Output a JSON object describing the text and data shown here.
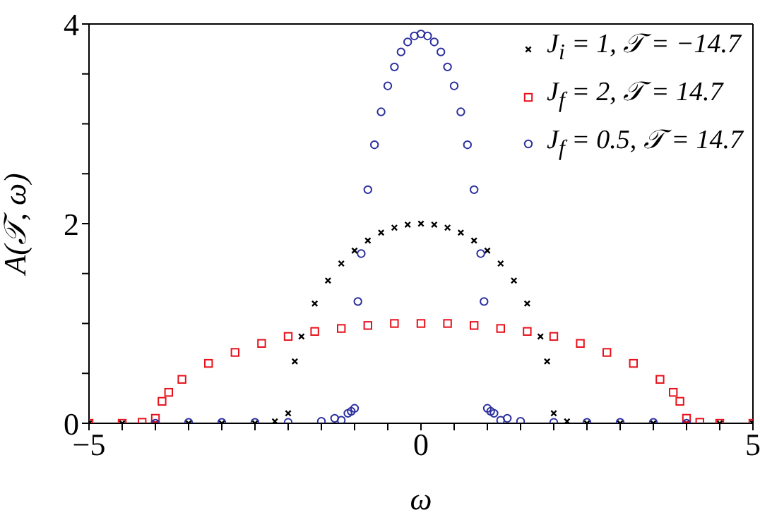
{
  "chart_data": {
    "type": "scatter",
    "xlabel": "ω",
    "ylabel": "A(𝒯, ω)",
    "xlim": [
      -5,
      5
    ],
    "ylim": [
      0,
      4
    ],
    "xticks": [
      -5,
      {
        "value": -4.5,
        "label": null
      },
      {
        "value": -4,
        "label": null
      },
      {
        "value": -3.5,
        "label": null
      },
      {
        "value": -3,
        "label": null
      },
      {
        "value": -2.5,
        "label": null
      },
      {
        "value": -2,
        "label": null
      },
      {
        "value": -1.5,
        "label": null
      },
      {
        "value": -1,
        "label": null
      },
      {
        "value": -0.5,
        "label": null
      },
      0,
      {
        "value": 0.5,
        "label": null
      },
      {
        "value": 1,
        "label": null
      },
      {
        "value": 1.5,
        "label": null
      },
      {
        "value": 2,
        "label": null
      },
      {
        "value": 2.5,
        "label": null
      },
      {
        "value": 3,
        "label": null
      },
      {
        "value": 3.5,
        "label": null
      },
      {
        "value": 4,
        "label": null
      },
      {
        "value": 4.5,
        "label": null
      },
      5
    ],
    "yticks": [
      0,
      {
        "value": 0.5,
        "label": null
      },
      {
        "value": 1,
        "label": null
      },
      {
        "value": 1.5,
        "label": null
      },
      2,
      {
        "value": 2.5,
        "label": null
      },
      {
        "value": 3,
        "label": null
      },
      {
        "value": 3.5,
        "label": null
      },
      4
    ],
    "legend": "top right",
    "grid": false,
    "series": [
      {
        "name": "J$_{i}$ = 1, 𝒯 = −14.7",
        "color": "#000000",
        "marker": "cross",
        "x": [
          -5,
          -4.5,
          -4,
          -3.5,
          -3,
          -2.5,
          -2.2,
          -2,
          -1.9,
          -1.8,
          -1.6,
          -1.4,
          -1.2,
          -1,
          -0.8,
          -0.6,
          -0.4,
          -0.2,
          0,
          0.2,
          0.4,
          0.6,
          0.8,
          1,
          1.2,
          1.4,
          1.6,
          1.8,
          1.9,
          2,
          2.2,
          2.5,
          3,
          3.5,
          4,
          4.5,
          5
        ],
        "values": [
          0,
          0,
          0,
          0,
          0,
          0,
          0.02,
          0.1,
          0.62,
          0.87,
          1.2,
          1.43,
          1.6,
          1.73,
          1.83,
          1.91,
          1.96,
          1.99,
          2,
          1.99,
          1.96,
          1.91,
          1.83,
          1.73,
          1.6,
          1.43,
          1.2,
          0.87,
          0.62,
          0.1,
          0.02,
          0,
          0,
          0,
          0,
          0,
          0
        ]
      },
      {
        "name": "J$_{f}$ = 2, 𝒯 = 14.7",
        "color": "#e8101c",
        "marker": "square",
        "x": [
          -5,
          -4.5,
          -4.2,
          -4,
          -3.9,
          -3.8,
          -3.6,
          -3.2,
          -2.8,
          -2.4,
          -2,
          -1.6,
          -1.2,
          -0.8,
          -0.4,
          0,
          0.4,
          0.8,
          1.2,
          1.6,
          2,
          2.4,
          2.8,
          3.2,
          3.6,
          3.8,
          3.9,
          4,
          4.2,
          4.5,
          5
        ],
        "values": [
          0,
          0,
          0.01,
          0.05,
          0.22,
          0.31,
          0.44,
          0.6,
          0.71,
          0.8,
          0.87,
          0.92,
          0.95,
          0.98,
          1,
          1,
          1,
          0.98,
          0.95,
          0.92,
          0.87,
          0.8,
          0.71,
          0.6,
          0.44,
          0.31,
          0.22,
          0.05,
          0.01,
          0,
          0
        ]
      },
      {
        "name": "J$_{f}$ = 0.5, 𝒯 = 14.7",
        "color": "#2b2f9e",
        "marker": "circle",
        "x": [
          -4,
          -3.5,
          -3,
          -2.5,
          -2,
          -1.5,
          -1.3,
          -1.2,
          -1.1,
          -1.05,
          -1,
          -0.95,
          -0.9,
          -0.8,
          -0.7,
          -0.6,
          -0.5,
          -0.4,
          -0.3,
          -0.2,
          -0.1,
          0,
          0.1,
          0.2,
          0.3,
          0.4,
          0.5,
          0.6,
          0.7,
          0.8,
          0.9,
          0.95,
          1,
          1.05,
          1.1,
          1.2,
          1.3,
          1.5,
          2,
          2.5,
          3,
          3.5,
          4
        ],
        "values": [
          0,
          0.01,
          0.01,
          0.01,
          0.01,
          0.02,
          0.05,
          0.03,
          0.1,
          0.12,
          0.15,
          1.22,
          1.7,
          2.34,
          2.79,
          3.12,
          3.38,
          3.57,
          3.72,
          3.82,
          3.88,
          3.9,
          3.88,
          3.82,
          3.72,
          3.57,
          3.38,
          3.12,
          2.79,
          2.34,
          1.7,
          1.22,
          0.15,
          0.12,
          0.1,
          0.03,
          0.05,
          0.02,
          0.01,
          0.01,
          0.01,
          0.01,
          0
        ]
      }
    ]
  }
}
